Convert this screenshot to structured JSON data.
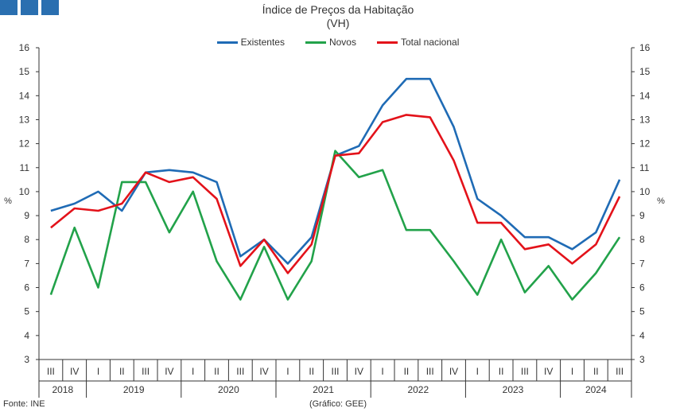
{
  "title": "Índice de Preços da Habitação",
  "subtitle": "(VH)",
  "logo": {
    "color": "#2a6fb0",
    "squares": 3
  },
  "footer": {
    "source": "Fonte: INE",
    "credit": "(Gráfico: GEE)"
  },
  "chart_data": {
    "type": "line",
    "title": "Índice de Preços da Habitação",
    "subtitle": "(VH)",
    "ylabel_left": "%",
    "ylabel_right": "%",
    "ylim": [
      3,
      16
    ],
    "yticks": [
      3,
      4,
      5,
      6,
      7,
      8,
      9,
      10,
      11,
      12,
      13,
      14,
      15,
      16
    ],
    "grid": false,
    "legend_position": "top-center",
    "quarters": [
      "III",
      "IV",
      "I",
      "II",
      "III",
      "IV",
      "I",
      "II",
      "III",
      "IV",
      "I",
      "II",
      "III",
      "IV",
      "I",
      "II",
      "III",
      "IV",
      "I",
      "II",
      "III",
      "IV",
      "I",
      "II",
      "III"
    ],
    "years": [
      {
        "label": "2018",
        "count": 2
      },
      {
        "label": "2019",
        "count": 4
      },
      {
        "label": "2020",
        "count": 4
      },
      {
        "label": "2021",
        "count": 4
      },
      {
        "label": "2022",
        "count": 4
      },
      {
        "label": "2023",
        "count": 4
      },
      {
        "label": "2024",
        "count": 3
      }
    ],
    "series": [
      {
        "name": "Existentes",
        "color": "#1f6bb5",
        "values": [
          9.2,
          9.5,
          10.0,
          9.2,
          10.8,
          10.9,
          10.8,
          10.4,
          7.3,
          8.0,
          7.0,
          8.1,
          11.5,
          11.9,
          13.6,
          14.7,
          14.7,
          12.7,
          9.7,
          9.0,
          8.1,
          8.1,
          7.6,
          8.3,
          10.5
        ]
      },
      {
        "name": "Novos",
        "color": "#22a24a",
        "values": [
          5.7,
          8.5,
          6.0,
          10.4,
          10.4,
          8.3,
          10.0,
          7.1,
          5.5,
          7.7,
          5.5,
          7.1,
          11.7,
          10.6,
          10.9,
          8.4,
          8.4,
          7.1,
          5.7,
          8.0,
          5.8,
          6.9,
          5.5,
          6.6,
          8.1
        ]
      },
      {
        "name": "Total nacional",
        "color": "#e3121a",
        "values": [
          8.5,
          9.3,
          9.2,
          9.5,
          10.8,
          10.4,
          10.6,
          9.7,
          6.9,
          8.0,
          6.6,
          7.8,
          11.5,
          11.6,
          12.9,
          13.2,
          13.1,
          11.3,
          8.7,
          8.7,
          7.6,
          7.8,
          7.0,
          7.8,
          9.8
        ]
      }
    ]
  }
}
